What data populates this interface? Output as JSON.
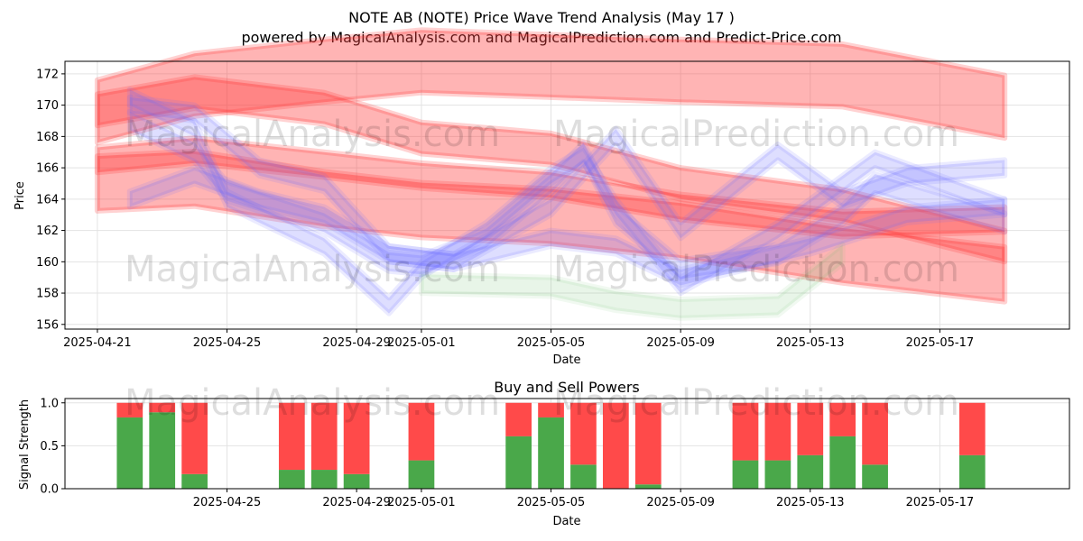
{
  "title_line1": "NOTE AB (NOTE) Price Wave Trend Analysis (May 17 )",
  "title_line2": "powered by MagicalAnalysis.com and MagicalPrediction.com and Predict-Price.com",
  "watermarks": [
    "MagicalAnalysis.com",
    "MagicalPrediction.com"
  ],
  "colors": {
    "buy": "#4aa84a",
    "sell": "#ff4a4a",
    "red_band": "#ff3b3b",
    "blue_band": "#6b6bff",
    "green_band": "#6fbf6f"
  },
  "chart_data": [
    {
      "type": "area",
      "title": "",
      "xlabel": "Date",
      "ylabel": "Price",
      "x_ticks": [
        "2025-04-21",
        "2025-04-25",
        "2025-04-29",
        "2025-05-01",
        "2025-05-05",
        "2025-05-09",
        "2025-05-13",
        "2025-05-17"
      ],
      "y_ticks": [
        156,
        158,
        160,
        162,
        164,
        166,
        168,
        170,
        172
      ],
      "ylim": [
        155.7,
        172.8
      ],
      "xlim": [
        "2025-04-20",
        "2025-05-21"
      ],
      "grid": true,
      "series": [
        {
          "color": "red",
          "x": [
            "2025-04-21",
            "2025-04-24",
            "2025-04-28",
            "2025-05-01",
            "2025-05-05",
            "2025-05-09",
            "2025-05-14",
            "2025-05-19"
          ],
          "values": [
            169.6,
            171.3,
            172.2,
            172.8,
            172.5,
            172.2,
            171.9,
            169.9
          ],
          "width": 4.0
        },
        {
          "color": "red",
          "x": [
            "2025-04-21",
            "2025-04-24",
            "2025-04-28",
            "2025-05-01",
            "2025-05-05",
            "2025-05-09",
            "2025-05-14",
            "2025-05-19"
          ],
          "values": [
            169.7,
            170.8,
            169.8,
            167.9,
            167.2,
            165.0,
            163.6,
            161.0
          ],
          "width": 2.0
        },
        {
          "color": "red",
          "x": [
            "2025-04-21",
            "2025-04-24",
            "2025-04-28",
            "2025-05-01",
            "2025-05-05",
            "2025-05-09",
            "2025-05-14",
            "2025-05-19"
          ],
          "values": [
            166.5,
            167.1,
            166.2,
            165.5,
            164.9,
            163.5,
            162.4,
            162.7
          ],
          "width": 1.6
        },
        {
          "color": "red",
          "x": [
            "2025-04-21",
            "2025-04-24",
            "2025-04-28",
            "2025-05-01",
            "2025-05-05",
            "2025-05-09",
            "2025-05-14",
            "2025-05-19"
          ],
          "values": [
            165.0,
            165.3,
            164.0,
            163.3,
            162.9,
            162.0,
            160.4,
            159.2
          ],
          "width": 3.5
        },
        {
          "color": "blue",
          "x": [
            "2025-04-22",
            "2025-04-24",
            "2025-04-25",
            "2025-04-28",
            "2025-04-30",
            "2025-05-01",
            "2025-05-03",
            "2025-05-05",
            "2025-05-06",
            "2025-05-07",
            "2025-05-09",
            "2025-05-12",
            "2025-05-14",
            "2025-05-15",
            "2025-05-19"
          ],
          "values": [
            170.5,
            168.5,
            164.0,
            161.0,
            157.2,
            159.5,
            162.0,
            165.5,
            166.8,
            163.5,
            158.5,
            162.0,
            165.0,
            166.5,
            163.5
          ],
          "width": 1.0
        },
        {
          "color": "blue",
          "x": [
            "2025-04-22",
            "2025-04-24",
            "2025-04-25",
            "2025-04-28",
            "2025-04-30",
            "2025-05-01",
            "2025-05-03",
            "2025-05-05",
            "2025-05-06",
            "2025-05-07",
            "2025-05-09",
            "2025-05-12",
            "2025-05-14",
            "2025-05-15",
            "2025-05-19"
          ],
          "values": [
            169.0,
            167.0,
            164.5,
            162.5,
            160.0,
            159.8,
            161.5,
            165.0,
            167.0,
            163.0,
            159.5,
            160.5,
            163.0,
            165.0,
            162.5
          ],
          "width": 1.2
        },
        {
          "color": "blue",
          "x": [
            "2025-04-22",
            "2025-04-24",
            "2025-04-26",
            "2025-04-28",
            "2025-04-30",
            "2025-05-02",
            "2025-05-05",
            "2025-05-07",
            "2025-05-09",
            "2025-05-13",
            "2025-05-16",
            "2025-05-19"
          ],
          "values": [
            164.0,
            165.5,
            164.0,
            163.0,
            160.5,
            160.0,
            161.5,
            161.0,
            159.0,
            161.0,
            163.0,
            163.5
          ],
          "width": 1.0
        },
        {
          "color": "blue",
          "x": [
            "2025-04-22",
            "2025-04-24",
            "2025-04-26",
            "2025-04-28",
            "2025-04-30",
            "2025-05-02",
            "2025-05-05",
            "2025-05-07",
            "2025-05-09",
            "2025-05-12",
            "2025-05-14",
            "2025-05-16",
            "2025-05-19"
          ],
          "values": [
            170.0,
            169.5,
            166.0,
            165.0,
            160.5,
            160.0,
            163.5,
            168.0,
            162.0,
            167.0,
            164.0,
            165.5,
            166.0
          ],
          "width": 1.0
        },
        {
          "color": "green",
          "x": [
            "2025-05-01",
            "2025-05-05",
            "2025-05-07",
            "2025-05-09",
            "2025-05-12",
            "2025-05-14"
          ],
          "values": [
            158.6,
            158.4,
            157.5,
            157.0,
            157.2,
            160.5
          ],
          "width": 1.2
        }
      ]
    },
    {
      "type": "bar",
      "title": "Buy and Sell Powers",
      "xlabel": "Date",
      "ylabel": "Signal Strength",
      "x_ticks": [
        "2025-04-25",
        "2025-04-29",
        "2025-05-01",
        "2025-05-05",
        "2025-05-09",
        "2025-05-13",
        "2025-05-17"
      ],
      "y_ticks": [
        0.0,
        0.5,
        1.0
      ],
      "ylim": [
        0,
        1.05
      ],
      "categories": [
        "2025-04-22",
        "2025-04-23",
        "2025-04-24",
        "2025-04-27",
        "2025-04-28",
        "2025-04-29",
        "2025-05-01",
        "2025-05-04",
        "2025-05-05",
        "2025-05-06",
        "2025-05-07",
        "2025-05-08",
        "2025-05-11",
        "2025-05-12",
        "2025-05-13",
        "2025-05-14",
        "2025-05-15",
        "2025-05-18"
      ],
      "series": [
        {
          "name": "Buy",
          "values": [
            0.83,
            0.89,
            0.17,
            0.22,
            0.22,
            0.17,
            0.33,
            0.61,
            0.83,
            0.28,
            0.0,
            0.05,
            0.33,
            0.33,
            0.39,
            0.61,
            0.28,
            0.39
          ]
        },
        {
          "name": "Sell",
          "values": [
            0.17,
            0.11,
            0.83,
            0.78,
            0.78,
            0.83,
            0.67,
            0.39,
            0.17,
            0.72,
            1.0,
            0.95,
            0.67,
            0.67,
            0.61,
            0.39,
            0.72,
            0.61
          ]
        }
      ]
    }
  ]
}
